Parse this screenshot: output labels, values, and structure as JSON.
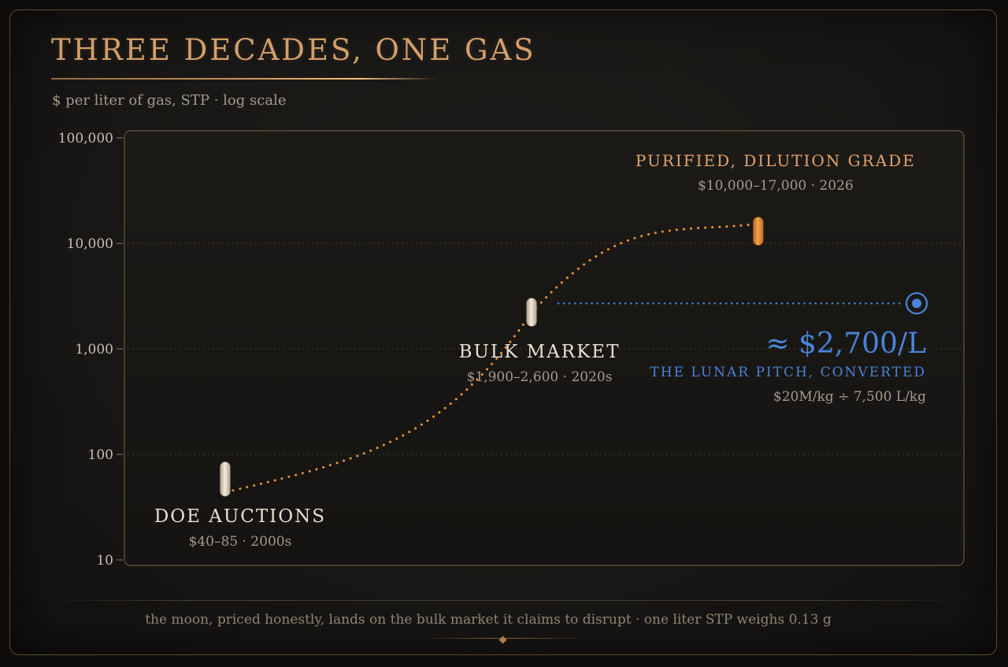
{
  "page": {
    "title": "THREE DECADES, ONE GAS",
    "subtitle": "$ per liter of gas, STP · log scale",
    "footer": "the moon, priced honestly,  lands on the bulk market it claims to disrupt  ·  one liter STP weighs 0.13 g"
  },
  "colors": {
    "orange": "#e8923c",
    "blue": "#4a83d8",
    "pill_white": "#e6ddcc",
    "gridline": "#4a3d2e"
  },
  "chart_data": {
    "type": "range",
    "scale": "log",
    "ylim": [
      10,
      100000
    ],
    "yticks": [
      {
        "value": 10,
        "label": "10"
      },
      {
        "value": 100,
        "label": "100"
      },
      {
        "value": 1000,
        "label": "1,000"
      },
      {
        "value": 10000,
        "label": "10,000"
      },
      {
        "value": 100000,
        "label": "100,000"
      }
    ],
    "grid": true,
    "points": [
      {
        "name": "DOE AUCTIONS",
        "detail": "$40–85 · 2000s",
        "low": 40,
        "high": 85,
        "mid": 70,
        "color": "white",
        "x_frac": 0.12
      },
      {
        "name": "BULK MARKET",
        "detail": "$1,900–2,600 · 2020s",
        "low": 1900,
        "high": 2600,
        "mid": 2200,
        "color": "white",
        "x_frac": 0.485
      },
      {
        "name": "PURIFIED, DILUTION GRADE",
        "detail": "$10,000–17,000 · 2026",
        "low": 10000,
        "high": 17000,
        "mid": 15000,
        "color": "orange",
        "x_frac": 0.755
      }
    ],
    "reference": {
      "value": 2700,
      "label": "≈ $2,700/L",
      "name": "THE LUNAR PITCH, CONVERTED",
      "note": "$20M/kg ÷ 7,500 L/kg"
    }
  }
}
